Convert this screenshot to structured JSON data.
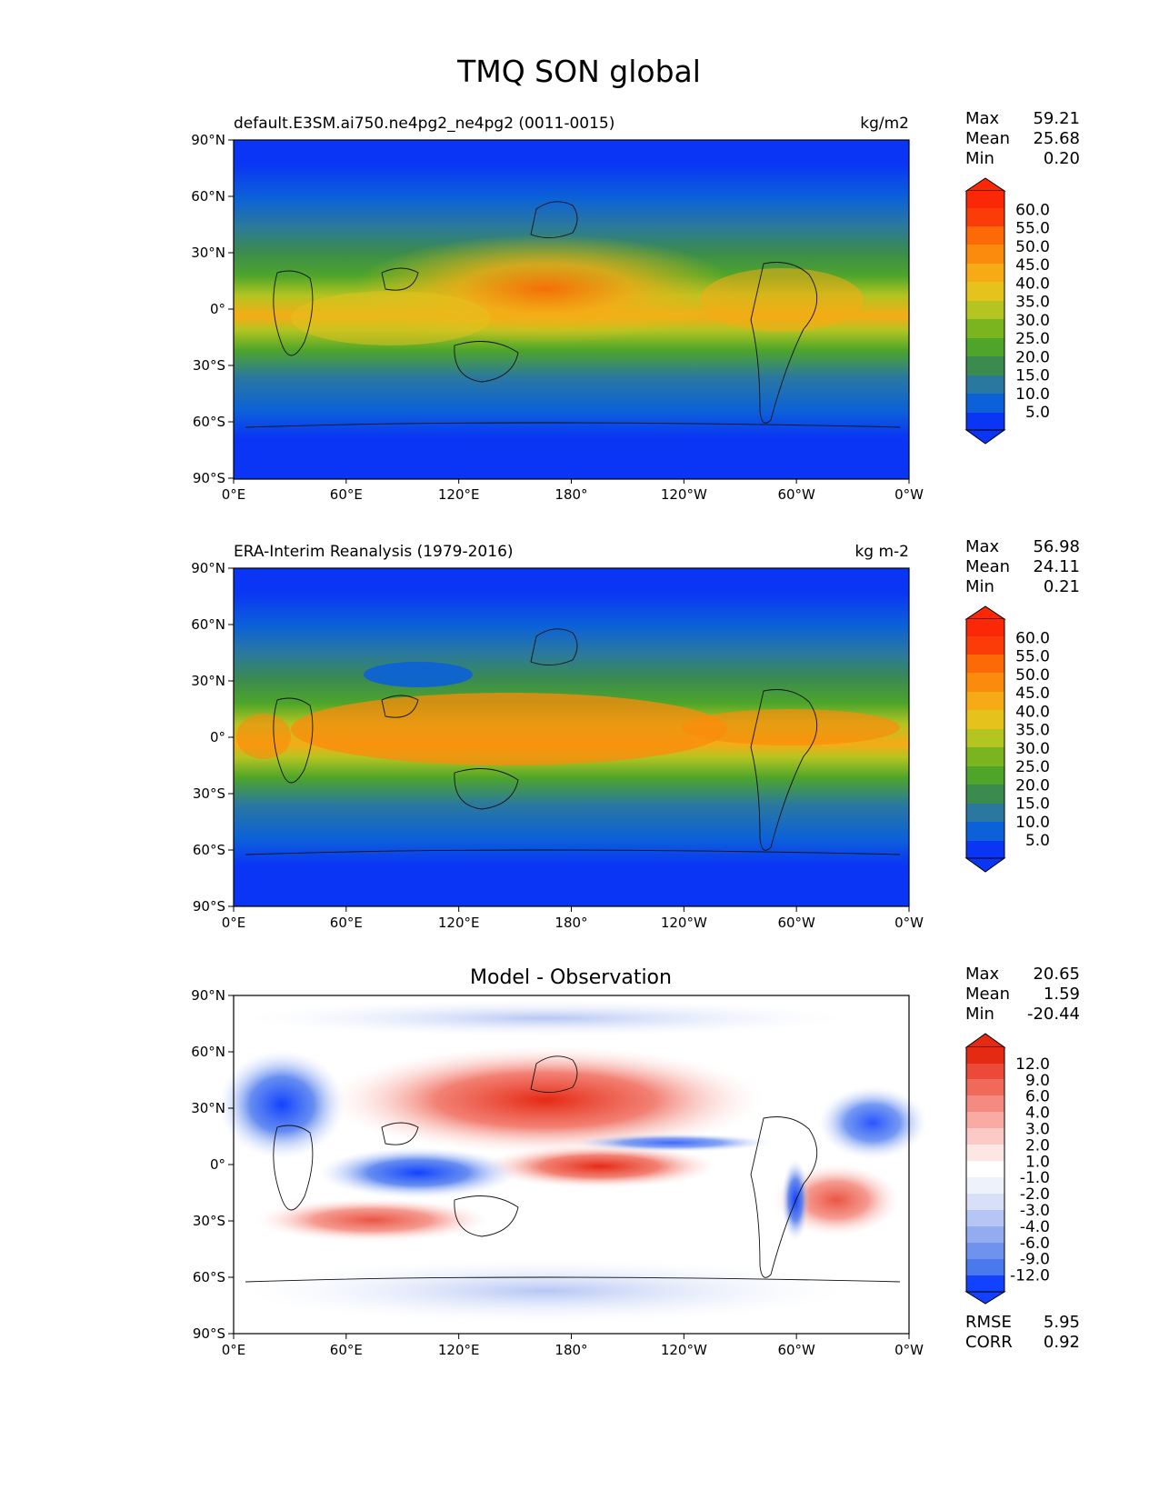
{
  "figure_title": "TMQ SON global",
  "axis_ticks": {
    "lat": [
      "90°N",
      "60°N",
      "30°N",
      "0°",
      "30°S",
      "60°S",
      "90°S"
    ],
    "lon": [
      "0°E",
      "60°E",
      "120°E",
      "180°",
      "120°W",
      "60°W",
      "0°W"
    ]
  },
  "colors": {
    "abs_levels": [
      "#0a35f5",
      "#0c61d8",
      "#2a78a0",
      "#3b8b4f",
      "#4ea52a",
      "#7ab51f",
      "#b4c421",
      "#e6c21c",
      "#f6ab16",
      "#fb8b0c",
      "#fb6a06",
      "#fb3c09",
      "#fb2808"
    ],
    "diff_levels": [
      "#1242ff",
      "#2f5ef3",
      "#4a79ee",
      "#6f92ee",
      "#93acf0",
      "#b6c6f4",
      "#d7e0f8",
      "#eef2fb",
      "#ffffff",
      "#fde7e5",
      "#fccac6",
      "#f9aaa3",
      "#f58a80",
      "#f06a5b",
      "#ea4a37",
      "#e52a14"
    ]
  },
  "chart_data": [
    {
      "type": "heatmap",
      "panel": "test",
      "title_left": "default.E3SM.ai750.ne4pg2_ne4pg2 (0011-0015)",
      "title_right": "kg/m2",
      "stats": [
        {
          "label": "Max",
          "value": "59.21"
        },
        {
          "label": "Mean",
          "value": "25.68"
        },
        {
          "label": "Min",
          "value": "0.20"
        }
      ],
      "colorbar_labels": [
        "60.0",
        "55.0",
        "50.0",
        "45.0",
        "40.0",
        "35.0",
        "30.0",
        "25.0",
        "20.0",
        "15.0",
        "10.0",
        "5.0"
      ],
      "xlim": [
        0,
        360
      ],
      "ylim": [
        -90,
        90
      ]
    },
    {
      "type": "heatmap",
      "panel": "reference",
      "title_left": "ERA-Interim Reanalysis (1979-2016)",
      "title_right": "kg m-2",
      "stats": [
        {
          "label": "Max",
          "value": "56.98"
        },
        {
          "label": "Mean",
          "value": "24.11"
        },
        {
          "label": "Min",
          "value": "0.21"
        }
      ],
      "colorbar_labels": [
        "60.0",
        "55.0",
        "50.0",
        "45.0",
        "40.0",
        "35.0",
        "30.0",
        "25.0",
        "20.0",
        "15.0",
        "10.0",
        "5.0"
      ],
      "xlim": [
        0,
        360
      ],
      "ylim": [
        -90,
        90
      ]
    },
    {
      "type": "heatmap",
      "panel": "difference",
      "title_center": "Model - Observation",
      "stats": [
        {
          "label": "Max",
          "value": "20.65"
        },
        {
          "label": "Mean",
          "value": "1.59"
        },
        {
          "label": "Min",
          "value": "-20.44"
        }
      ],
      "colorbar_labels": [
        "12.0",
        "9.0",
        "6.0",
        "4.0",
        "3.0",
        "2.0",
        "1.0",
        "-1.0",
        "-2.0",
        "-3.0",
        "-4.0",
        "-6.0",
        "-9.0",
        "-12.0"
      ],
      "metrics": [
        {
          "label": "RMSE",
          "value": "5.95"
        },
        {
          "label": "CORR",
          "value": "0.92"
        }
      ],
      "xlim": [
        0,
        360
      ],
      "ylim": [
        -90,
        90
      ]
    }
  ]
}
